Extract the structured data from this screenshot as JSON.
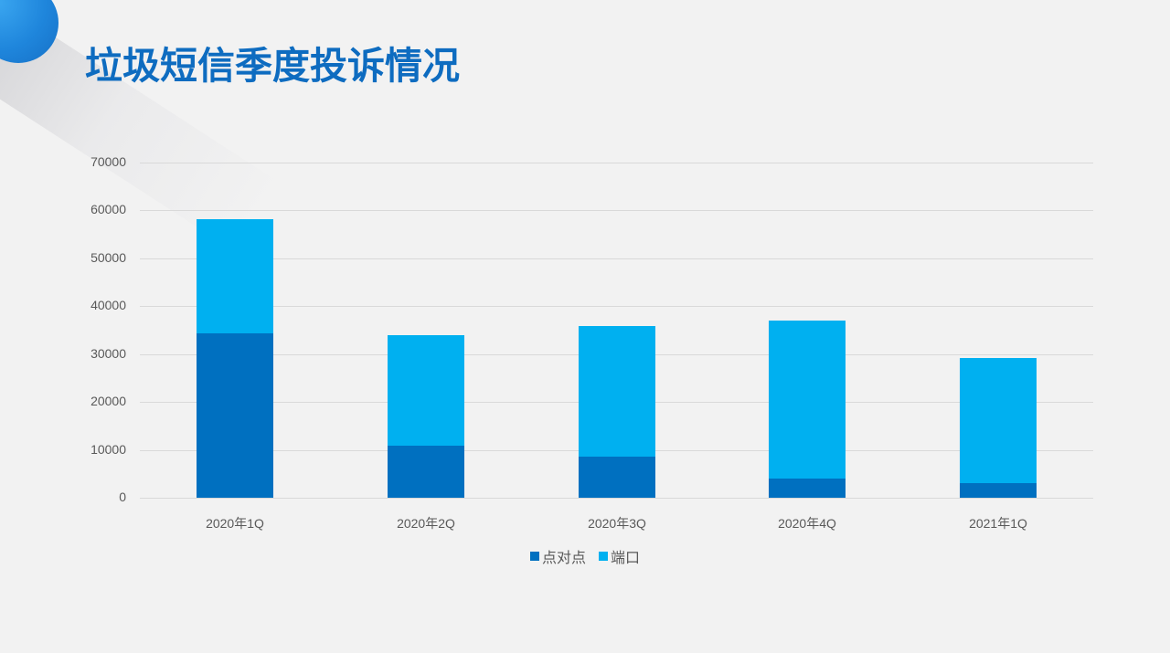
{
  "title": "垃圾短信季度投诉情况",
  "colors": {
    "background": "#f2f2f2",
    "title": "#0e6cc0",
    "series_dark": "#0070c0",
    "series_light": "#00b0f0",
    "grid": "#d9d9d9",
    "axis_text": "#595959"
  },
  "chart_data": {
    "type": "bar",
    "stacked": true,
    "title": "垃圾短信季度投诉情况",
    "xlabel": "",
    "ylabel": "",
    "categories": [
      "2020年1Q",
      "2020年2Q",
      "2020年3Q",
      "2020年4Q",
      "2021年1Q"
    ],
    "series": [
      {
        "name": "点对点",
        "color": "#0070c0",
        "values": [
          34300,
          10900,
          8600,
          4000,
          3100
        ]
      },
      {
        "name": "端口",
        "color": "#00b0f0",
        "values": [
          23900,
          23100,
          27300,
          33000,
          26100
        ]
      }
    ],
    "totals": [
      58200,
      34000,
      35900,
      37000,
      29200
    ],
    "ylim": [
      0,
      70000
    ],
    "yticks": [
      "0",
      "10000",
      "20000",
      "30000",
      "40000",
      "50000",
      "60000",
      "70000"
    ],
    "grid": true,
    "legend_position": "bottom"
  }
}
